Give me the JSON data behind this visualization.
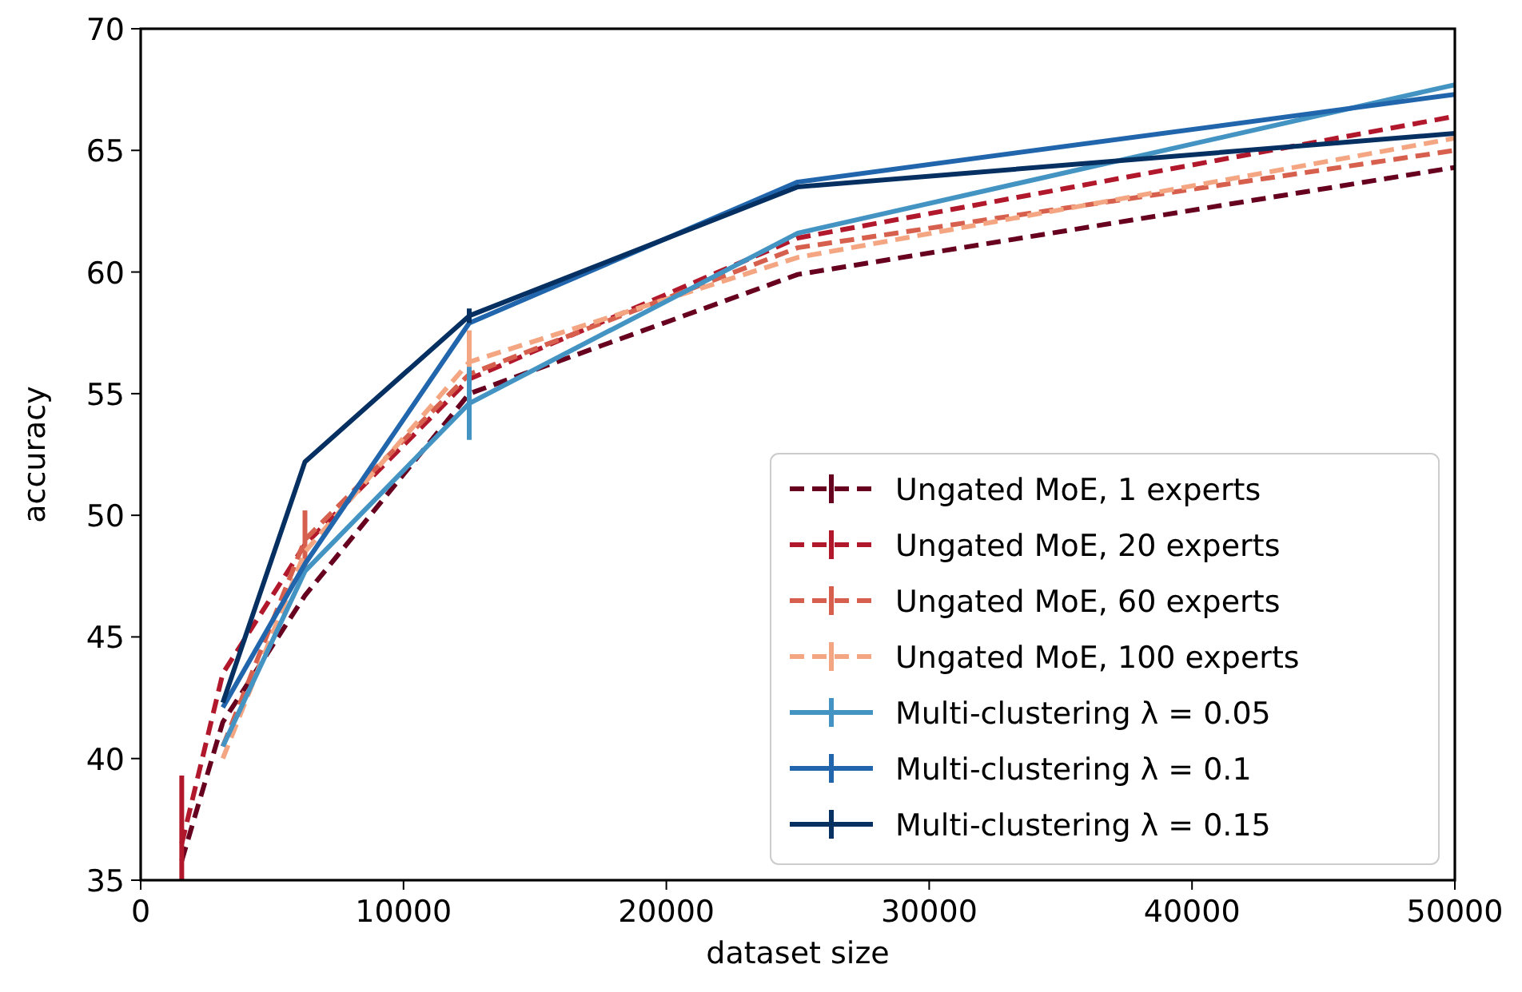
{
  "chart_data": {
    "type": "line",
    "xlabel": "dataset size",
    "ylabel": "accuracy",
    "x": [
      1562,
      3125,
      6250,
      12500,
      25000,
      50000
    ],
    "xlim": [
      0,
      50000
    ],
    "xticks": [
      0,
      10000,
      20000,
      30000,
      40000,
      50000
    ],
    "ylim": [
      35,
      70
    ],
    "yticks": [
      35,
      40,
      45,
      50,
      55,
      60,
      65,
      70
    ],
    "grid": false,
    "legend": "bottom right",
    "marker": "none",
    "series": [
      {
        "name": "Ungated MoE, 1 experts",
        "color": "#67001f",
        "line_style": "dashed",
        "values": [
          35.8,
          41.5,
          46.7,
          55.0,
          59.9,
          64.3
        ]
      },
      {
        "name": "Ungated MoE, 20 experts",
        "color": "#b2182b",
        "line_style": "dashed",
        "values": [
          36.5,
          43.5,
          48.8,
          55.6,
          61.4,
          66.4
        ],
        "errors": [
          2.8,
          null,
          null,
          null,
          null,
          null
        ]
      },
      {
        "name": "Ungated MoE, 60 experts",
        "color": "#d6604d",
        "line_style": "dashed",
        "values": [
          null,
          40.5,
          49.0,
          55.8,
          61.0,
          65.0
        ],
        "errors": [
          null,
          null,
          1.2,
          null,
          null,
          null
        ]
      },
      {
        "name": "Ungated MoE, 100 experts",
        "color": "#f4a582",
        "line_style": "dashed",
        "values": [
          null,
          40.0,
          48.5,
          56.3,
          60.6,
          65.5
        ],
        "errors": [
          null,
          null,
          null,
          1.3,
          null,
          null
        ]
      },
      {
        "name": "Multi-clustering λ = 0.05",
        "color": "#4393c3",
        "line_style": "solid",
        "values": [
          null,
          40.5,
          47.7,
          54.6,
          61.6,
          67.7
        ],
        "errors": [
          null,
          null,
          null,
          1.5,
          null,
          null
        ]
      },
      {
        "name": "Multi-clustering λ = 0.1",
        "color": "#2166ac",
        "line_style": "solid",
        "values": [
          null,
          42.1,
          48.0,
          57.9,
          63.7,
          67.3
        ]
      },
      {
        "name": "Multi-clustering λ = 0.15",
        "color": "#053061",
        "line_style": "solid",
        "values": [
          null,
          42.3,
          52.2,
          58.2,
          63.5,
          65.7
        ],
        "errors": [
          null,
          null,
          null,
          0.3,
          null,
          null
        ]
      }
    ]
  }
}
